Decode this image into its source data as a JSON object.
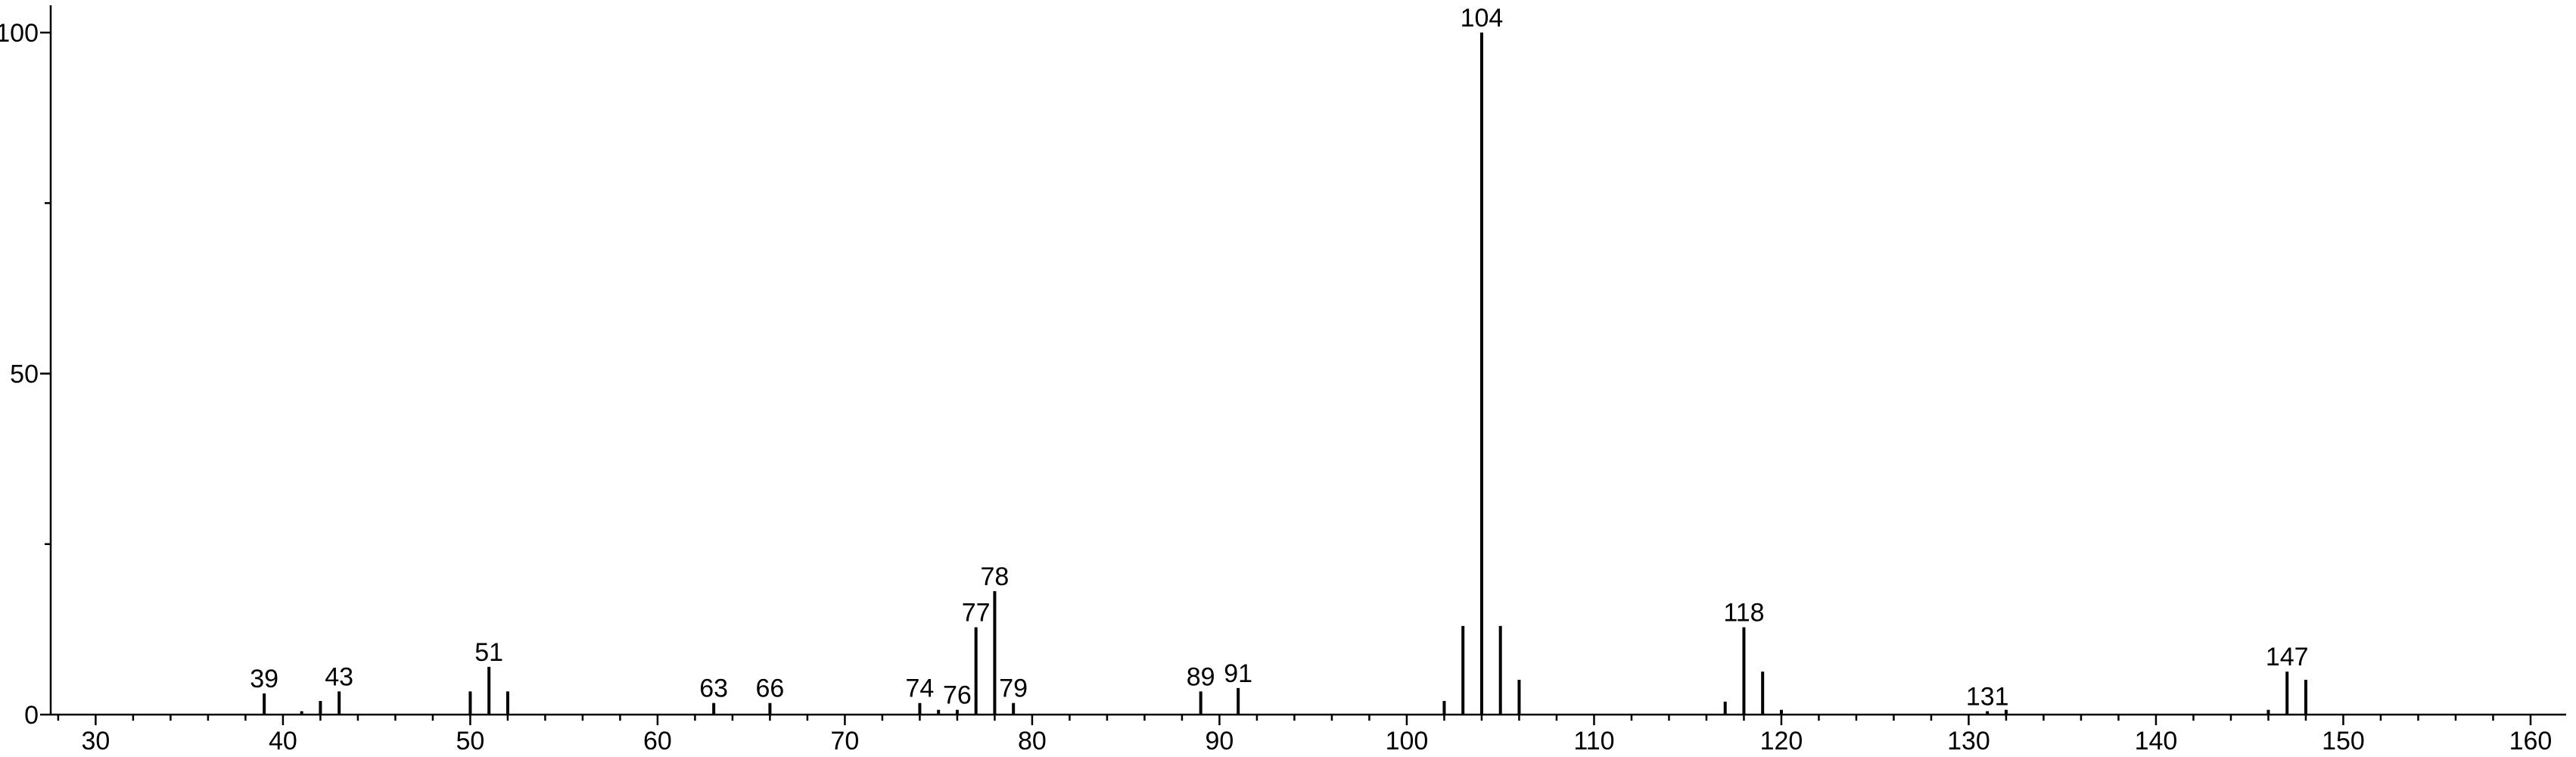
{
  "chart_data": {
    "type": "stem",
    "x": [
      39,
      41,
      42,
      43,
      50,
      51,
      52,
      63,
      66,
      74,
      75,
      76,
      77,
      78,
      79,
      89,
      91,
      102,
      103,
      104,
      105,
      106,
      117,
      118,
      119,
      120,
      131,
      132,
      146,
      147,
      148
    ],
    "values": [
      3.1,
      0.5,
      2,
      3.4,
      3.4,
      7,
      3.4,
      1.7,
      1.7,
      1.7,
      0.7,
      0.7,
      12.8,
      18.1,
      1.7,
      3.4,
      3.9,
      2,
      13,
      100,
      13,
      5.1,
      1.9,
      12.8,
      6.3,
      0.7,
      0.5,
      0.7,
      0.7,
      6.3,
      5.1
    ],
    "labeled": [
      true,
      false,
      false,
      true,
      false,
      true,
      false,
      true,
      true,
      true,
      false,
      true,
      true,
      true,
      true,
      true,
      true,
      false,
      false,
      true,
      false,
      false,
      false,
      true,
      false,
      false,
      true,
      false,
      false,
      true,
      false
    ],
    "color": "#000000",
    "xlim": [
      27.6,
      161.9
    ],
    "xticks": [
      30,
      40,
      50,
      60,
      70,
      80,
      90,
      100,
      110,
      120,
      130,
      140,
      150,
      160
    ],
    "xminorticks": [
      28,
      32,
      34,
      36,
      38,
      42,
      44,
      46,
      48,
      52,
      54,
      56,
      58,
      62,
      64,
      66,
      68,
      72,
      74,
      76,
      78,
      82,
      84,
      86,
      88,
      92,
      94,
      96,
      98,
      102,
      104,
      106,
      108,
      112,
      114,
      116,
      118,
      122,
      124,
      126,
      128,
      132,
      134,
      136,
      138,
      142,
      144,
      146,
      148,
      152,
      154,
      156,
      158
    ],
    "ylim": [
      0,
      104
    ],
    "yticks": [
      0,
      50,
      100
    ],
    "yminorticks": [
      25,
      75
    ]
  }
}
